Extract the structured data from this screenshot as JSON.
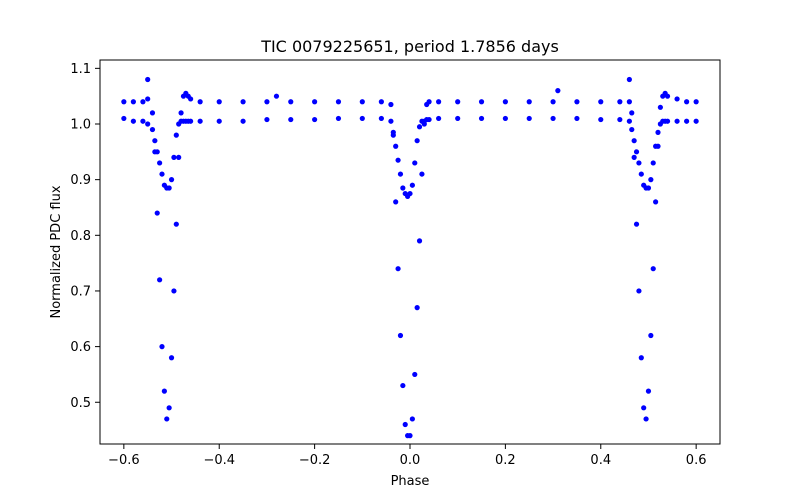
{
  "chart_data": {
    "type": "scatter",
    "title": "TIC 0079225651, period 1.7856 days",
    "xlabel": "Phase",
    "ylabel": "Normalized PDC flux",
    "xlim": [
      -0.65,
      0.65
    ],
    "ylim": [
      0.425,
      1.115
    ],
    "grid": false,
    "marker_color": "#0000ff",
    "x_ticks": [
      -0.6,
      -0.4,
      -0.2,
      0.0,
      0.2,
      0.4,
      0.6
    ],
    "x_tick_labels": [
      "−0.6",
      "−0.4",
      "−0.2",
      "0.0",
      "0.2",
      "0.4",
      "0.6"
    ],
    "y_ticks": [
      0.5,
      0.6,
      0.7,
      0.8,
      0.9,
      1.0,
      1.1
    ],
    "y_tick_labels": [
      "0.5",
      "0.6",
      "0.7",
      "0.8",
      "0.9",
      "1.0",
      "1.1"
    ],
    "series": [
      {
        "x": [
          -0.6,
          -0.58,
          -0.56,
          -0.55,
          -0.54,
          -0.535,
          -0.53,
          -0.525,
          -0.52,
          -0.515,
          -0.51,
          -0.505,
          -0.5,
          -0.495,
          -0.49,
          -0.485,
          -0.48,
          -0.475,
          -0.47,
          -0.465,
          -0.46,
          -0.44,
          -0.4,
          -0.35,
          -0.3,
          -0.25,
          -0.2,
          -0.15,
          -0.1,
          -0.06,
          -0.04,
          -0.035,
          -0.03,
          -0.025,
          -0.02,
          -0.015,
          -0.01,
          -0.005,
          0.0,
          0.005,
          0.01,
          0.015,
          0.02,
          0.025,
          0.03,
          0.035,
          0.04,
          0.06,
          0.1,
          0.15,
          0.2,
          0.25,
          0.3,
          0.35,
          0.4,
          0.44,
          0.46,
          0.465,
          0.47,
          0.475,
          0.48,
          0.485,
          0.49,
          0.495,
          0.5,
          0.505,
          0.51,
          0.515,
          0.52,
          0.525,
          0.53,
          0.535,
          0.54,
          0.56,
          0.58,
          0.6
        ],
        "y": [
          1.04,
          1.04,
          1.04,
          1.045,
          1.02,
          0.95,
          0.84,
          0.72,
          0.6,
          0.52,
          0.47,
          0.49,
          0.58,
          0.7,
          0.82,
          0.94,
          1.02,
          1.05,
          1.055,
          1.05,
          1.045,
          1.04,
          1.04,
          1.04,
          1.04,
          1.04,
          1.04,
          1.04,
          1.04,
          1.04,
          1.035,
          0.98,
          0.86,
          0.74,
          0.62,
          0.53,
          0.46,
          0.44,
          0.44,
          0.47,
          0.55,
          0.67,
          0.79,
          0.91,
          1.0,
          1.035,
          1.04,
          1.04,
          1.04,
          1.04,
          1.04,
          1.04,
          1.04,
          1.04,
          1.04,
          1.04,
          1.04,
          1.02,
          0.94,
          0.82,
          0.7,
          0.58,
          0.49,
          0.47,
          0.52,
          0.62,
          0.74,
          0.86,
          0.96,
          1.03,
          1.05,
          1.055,
          1.05,
          1.045,
          1.04,
          1.04
        ]
      },
      {
        "x": [
          -0.6,
          -0.58,
          -0.56,
          -0.55,
          -0.54,
          -0.535,
          -0.53,
          -0.525,
          -0.52,
          -0.515,
          -0.51,
          -0.505,
          -0.5,
          -0.495,
          -0.49,
          -0.485,
          -0.48,
          -0.475,
          -0.47,
          -0.465,
          -0.46,
          -0.44,
          -0.4,
          -0.35,
          -0.3,
          -0.25,
          -0.2,
          -0.15,
          -0.1,
          -0.06,
          -0.04,
          -0.035,
          -0.03,
          -0.025,
          -0.02,
          -0.015,
          -0.01,
          -0.005,
          0.0,
          0.005,
          0.01,
          0.015,
          0.02,
          0.025,
          0.03,
          0.035,
          0.04,
          0.06,
          0.1,
          0.15,
          0.2,
          0.25,
          0.3,
          0.35,
          0.4,
          0.44,
          0.46,
          0.465,
          0.47,
          0.475,
          0.48,
          0.485,
          0.49,
          0.495,
          0.5,
          0.505,
          0.51,
          0.515,
          0.52,
          0.525,
          0.53,
          0.535,
          0.54,
          0.56,
          0.58,
          0.6
        ],
        "y": [
          1.01,
          1.005,
          1.005,
          1.0,
          0.99,
          0.97,
          0.95,
          0.93,
          0.91,
          0.89,
          0.885,
          0.885,
          0.9,
          0.94,
          0.98,
          1.0,
          1.005,
          1.005,
          1.005,
          1.005,
          1.005,
          1.005,
          1.005,
          1.005,
          1.008,
          1.008,
          1.008,
          1.01,
          1.01,
          1.01,
          1.005,
          0.985,
          0.96,
          0.935,
          0.91,
          0.885,
          0.875,
          0.87,
          0.875,
          0.89,
          0.93,
          0.97,
          0.995,
          1.005,
          1.005,
          1.008,
          1.008,
          1.01,
          1.01,
          1.01,
          1.01,
          1.01,
          1.01,
          1.01,
          1.008,
          1.008,
          1.005,
          0.99,
          0.97,
          0.95,
          0.93,
          0.91,
          0.89,
          0.885,
          0.885,
          0.9,
          0.93,
          0.96,
          0.985,
          1.0,
          1.005,
          1.005,
          1.005,
          1.005,
          1.005,
          1.005
        ]
      },
      {
        "x": [
          -0.55,
          -0.28,
          0.31,
          0.46
        ],
        "y": [
          1.08,
          1.05,
          1.06,
          1.08
        ]
      }
    ]
  }
}
